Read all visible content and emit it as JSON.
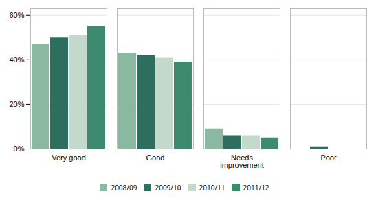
{
  "chart_data": {
    "type": "bar",
    "categories": [
      "Very good",
      "Good",
      "Needs\nimprovement",
      "Poor"
    ],
    "series": [
      {
        "name": "2008/09",
        "color": "#8ab8a0",
        "values": [
          47,
          43,
          9,
          0
        ]
      },
      {
        "name": "2009/10",
        "color": "#2d6e5e",
        "values": [
          50,
          42,
          6,
          1
        ]
      },
      {
        "name": "2010/11",
        "color": "#c2d9cb",
        "values": [
          51,
          41,
          6,
          0
        ]
      },
      {
        "name": "2011/12",
        "color": "#3d8a6e",
        "values": [
          55,
          39,
          5,
          0
        ]
      }
    ],
    "ylim": [
      0,
      63
    ],
    "yticks": [
      {
        "value": 0,
        "label": "0%"
      },
      {
        "value": 20,
        "label": "20%"
      },
      {
        "value": 40,
        "label": "40%"
      },
      {
        "value": 60,
        "label": "60%"
      }
    ],
    "grid": true,
    "legend": "bottom"
  }
}
